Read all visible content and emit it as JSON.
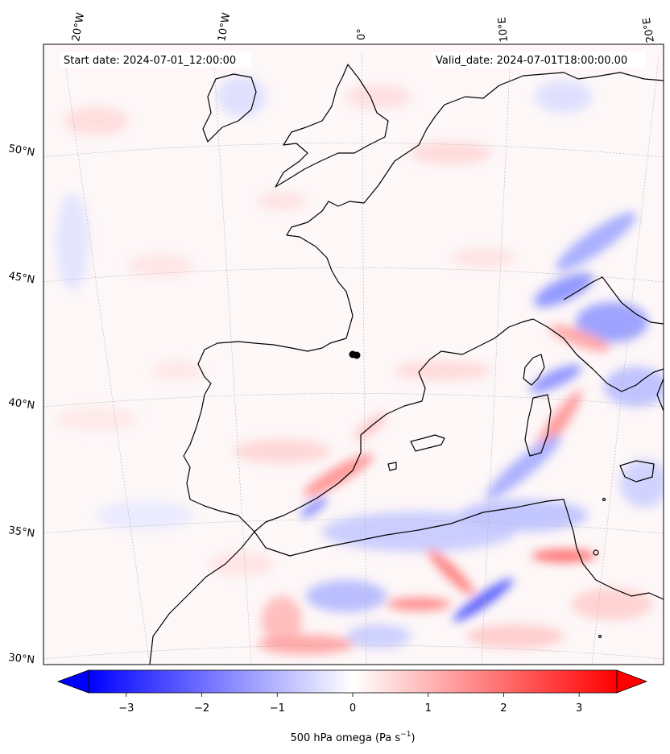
{
  "map": {
    "start_label": "Start date: 2024-07-01_12:00:00",
    "valid_label": "Valid_date: 2024-07-01T18:00:00.00",
    "lon_labels": [
      "20°W",
      "10°W",
      "0°",
      "10°E",
      "20°E"
    ],
    "lat_labels": [
      "50°N",
      "45°N",
      "40°N",
      "35°N",
      "30°N"
    ],
    "field": "500 hPa omega"
  },
  "colorbar": {
    "ticks": [
      "−3",
      "−2",
      "−1",
      "0",
      "1",
      "2",
      "3"
    ],
    "tick_values": [
      -3,
      -2,
      -1,
      0,
      1,
      2,
      3
    ],
    "range": [
      -3.5,
      3.5
    ],
    "label_main": "500 hPa omega (Pa s",
    "label_sup": "−1",
    "label_end": ")",
    "colors": {
      "neg": "#0000ff",
      "zero": "#ffffff",
      "pos": "#ff0000"
    }
  },
  "styles": {
    "coastline": "#000000",
    "gridline": "#b0b0b0"
  }
}
